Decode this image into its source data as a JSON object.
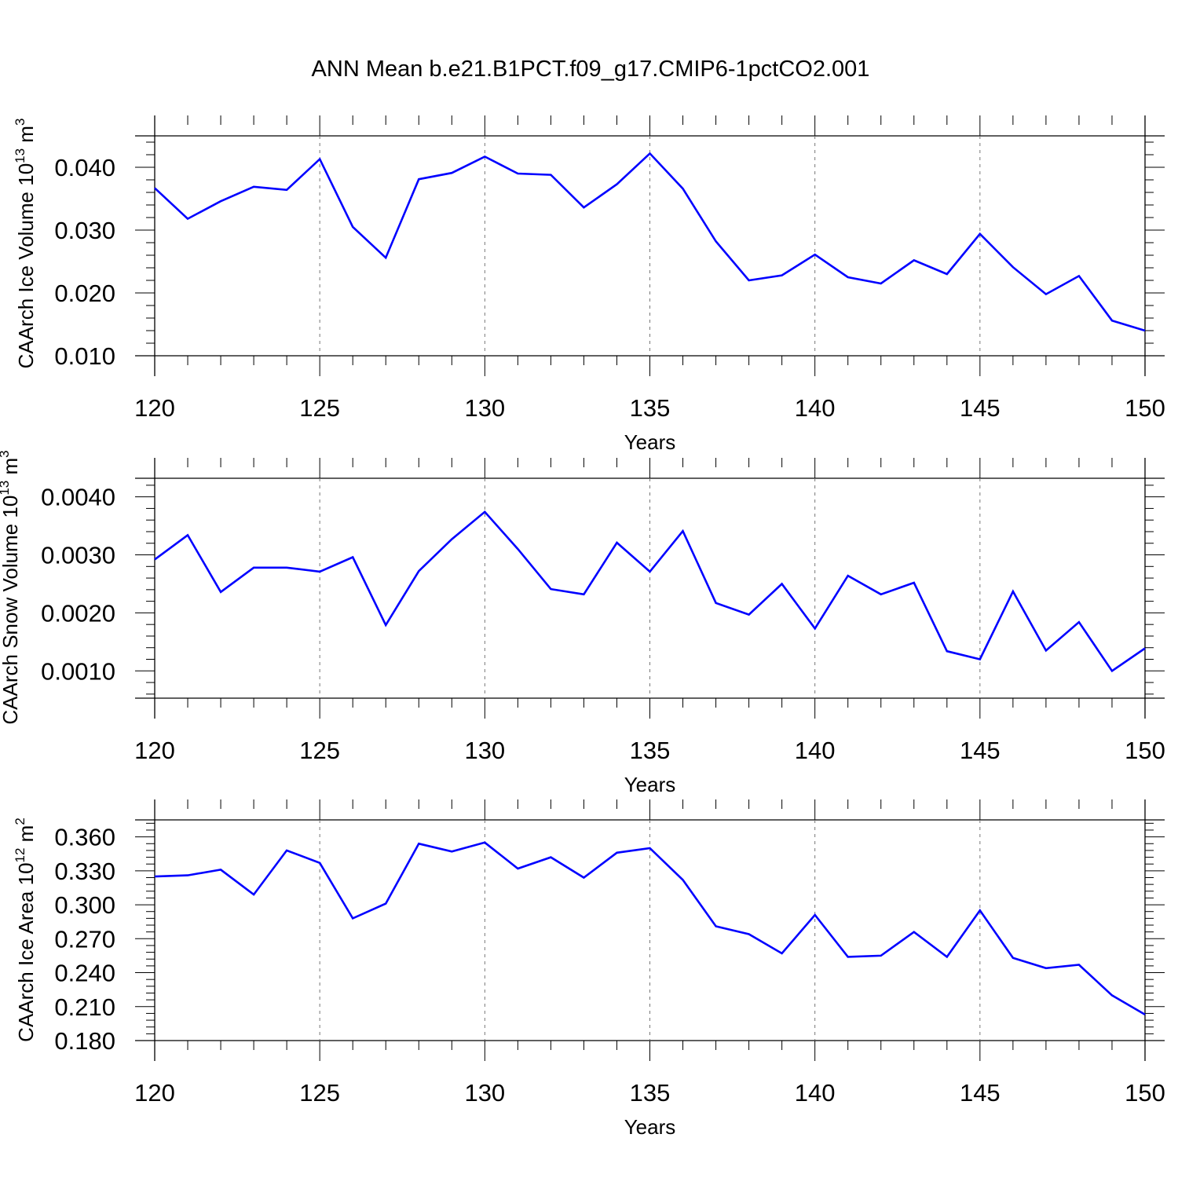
{
  "title": "ANN Mean b.e21.B1PCT.f09_g17.CMIP6-1pctCO2.001",
  "chart_data": [
    {
      "type": "line",
      "ylabel": "CAArch Ice Volume 10",
      "ylabel_exp": "13",
      "ylabel_unit": " m",
      "ylabel_unit_exp": "3",
      "xlabel": "Years",
      "xlim": [
        120,
        150
      ],
      "ylim": [
        0.01,
        0.045
      ],
      "xticks": [
        "120",
        "125",
        "130",
        "135",
        "140",
        "145",
        "150"
      ],
      "yticks": [
        "0.010",
        "0.020",
        "0.030",
        "0.040"
      ],
      "grid": "dashed vertical at major x ticks",
      "color": "#0000ff",
      "x": [
        120,
        121,
        122,
        123,
        124,
        125,
        126,
        127,
        128,
        129,
        130,
        131,
        132,
        133,
        134,
        135,
        136,
        137,
        138,
        139,
        140,
        141,
        142,
        143,
        144,
        145,
        146,
        147,
        148,
        149,
        150
      ],
      "y": [
        0.0367,
        0.0318,
        0.0346,
        0.0369,
        0.0364,
        0.0413,
        0.0305,
        0.0256,
        0.0381,
        0.0391,
        0.0417,
        0.039,
        0.0388,
        0.0336,
        0.0373,
        0.0422,
        0.0366,
        0.0282,
        0.022,
        0.0228,
        0.0261,
        0.0225,
        0.0215,
        0.0252,
        0.023,
        0.0294,
        0.0241,
        0.0198,
        0.0227,
        0.0156,
        0.014
      ]
    },
    {
      "type": "line",
      "ylabel": "CAArch Snow Volume 10",
      "ylabel_exp": "13",
      "ylabel_unit": " m",
      "ylabel_unit_exp": "3",
      "xlabel": "Years",
      "xlim": [
        120,
        150
      ],
      "ylim": [
        0.00053,
        0.00432
      ],
      "xticks": [
        "120",
        "125",
        "130",
        "135",
        "140",
        "145",
        "150"
      ],
      "yticks": [
        "0.0010",
        "0.0020",
        "0.0030",
        "0.0040"
      ],
      "grid": "dashed vertical at major x ticks",
      "color": "#0000ff",
      "x": [
        120,
        121,
        122,
        123,
        124,
        125,
        126,
        127,
        128,
        129,
        130,
        131,
        132,
        133,
        134,
        135,
        136,
        137,
        138,
        139,
        140,
        141,
        142,
        143,
        144,
        145,
        146,
        147,
        148,
        149,
        150
      ],
      "y": [
        0.00292,
        0.00334,
        0.00236,
        0.00278,
        0.00278,
        0.00271,
        0.00296,
        0.00179,
        0.00272,
        0.00327,
        0.00374,
        0.0031,
        0.00241,
        0.00232,
        0.00321,
        0.00271,
        0.00341,
        0.00217,
        0.00197,
        0.0025,
        0.00173,
        0.00264,
        0.00232,
        0.00252,
        0.00134,
        0.0012,
        0.00237,
        0.00135,
        0.00184,
        0.001,
        0.00139
      ]
    },
    {
      "type": "line",
      "ylabel": "CAArch Ice Area 10",
      "ylabel_exp": "12",
      "ylabel_unit": " m",
      "ylabel_unit_exp": "2",
      "xlabel": "Years",
      "xlim": [
        120,
        150
      ],
      "ylim": [
        0.18,
        0.375
      ],
      "xticks": [
        "120",
        "125",
        "130",
        "135",
        "140",
        "145",
        "150"
      ],
      "yticks": [
        "0.180",
        "0.210",
        "0.240",
        "0.270",
        "0.300",
        "0.330",
        "0.360"
      ],
      "grid": "dashed vertical at major x ticks",
      "color": "#0000ff",
      "x": [
        120,
        121,
        122,
        123,
        124,
        125,
        126,
        127,
        128,
        129,
        130,
        131,
        132,
        133,
        134,
        135,
        136,
        137,
        138,
        139,
        140,
        141,
        142,
        143,
        144,
        145,
        146,
        147,
        148,
        149,
        150
      ],
      "y": [
        0.325,
        0.326,
        0.331,
        0.309,
        0.348,
        0.337,
        0.288,
        0.301,
        0.354,
        0.347,
        0.355,
        0.332,
        0.342,
        0.324,
        0.346,
        0.35,
        0.322,
        0.281,
        0.274,
        0.257,
        0.291,
        0.254,
        0.255,
        0.276,
        0.254,
        0.295,
        0.253,
        0.244,
        0.247,
        0.22,
        0.203
      ]
    }
  ]
}
